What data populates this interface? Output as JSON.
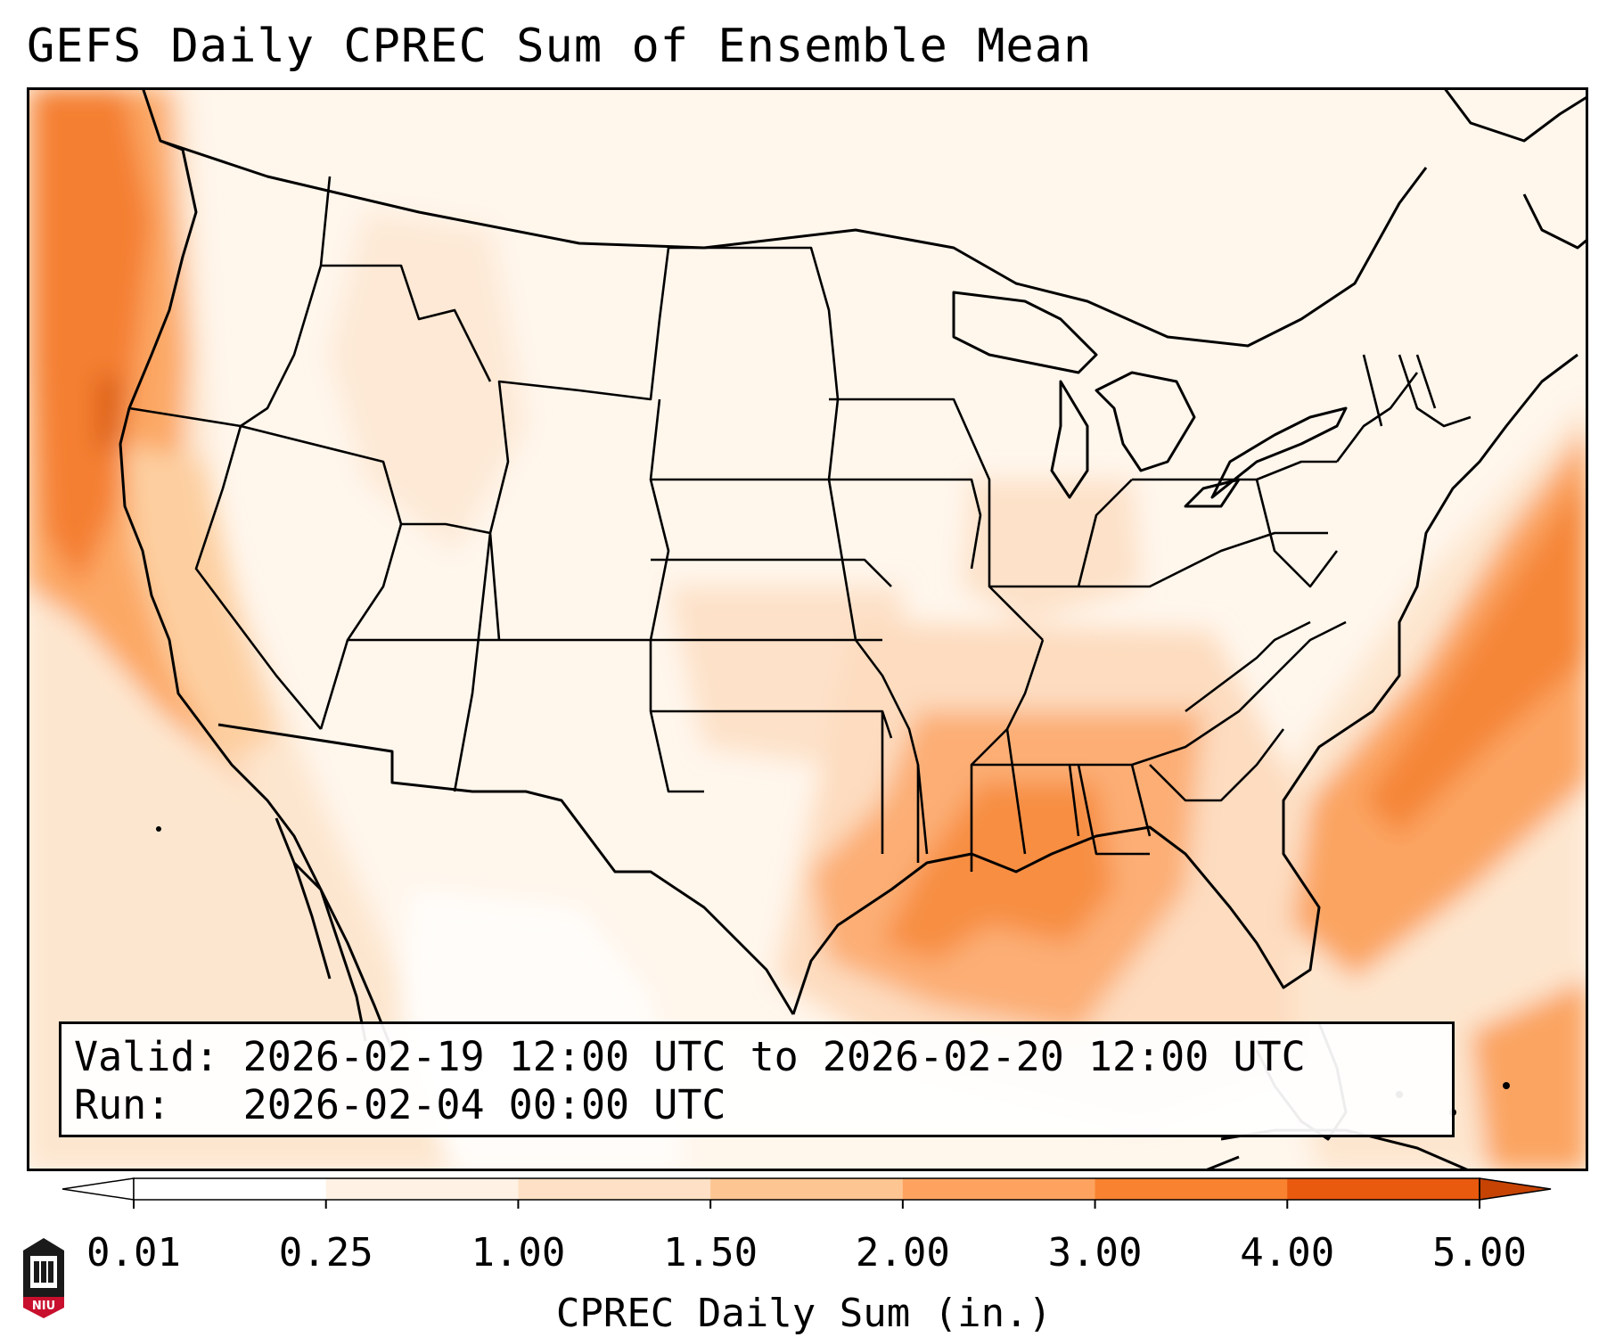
{
  "title": "GEFS Daily CPREC Sum of Ensemble Mean",
  "info": {
    "valid_label": "Valid:",
    "valid_value": "2026-02-19 12:00 UTC to 2026-02-20 12:00 UTC",
    "run_label": "Run:",
    "run_value": "2026-02-04 00:00 UTC"
  },
  "colorbar": {
    "label": "CPREC Daily Sum (in.)",
    "ticks": [
      "0.01",
      "0.25",
      "1.00",
      "1.50",
      "2.00",
      "3.00",
      "4.00",
      "5.00"
    ],
    "colors": [
      "#ffffff",
      "#fff1e4",
      "#fde0c5",
      "#fdc591",
      "#fda35f",
      "#f8822f",
      "#e9590e",
      "#c64304"
    ]
  },
  "logo": {
    "text": "NIU",
    "color": "#c8102e"
  },
  "map_data": {
    "type": "heatmap",
    "region": "Continental United States",
    "features": [
      "state boundaries",
      "coastlines",
      "international borders"
    ],
    "precip_maxima": [
      {
        "region": "Pacific Northwest coast",
        "level": "3.00-4.00"
      },
      {
        "region": "Mississippi / Alabama",
        "level": "2.00-3.00"
      },
      {
        "region": "Gulf of Mexico",
        "level": "2.00-3.00"
      },
      {
        "region": "Western Atlantic off Carolinas",
        "level": "2.00-3.00"
      }
    ]
  }
}
